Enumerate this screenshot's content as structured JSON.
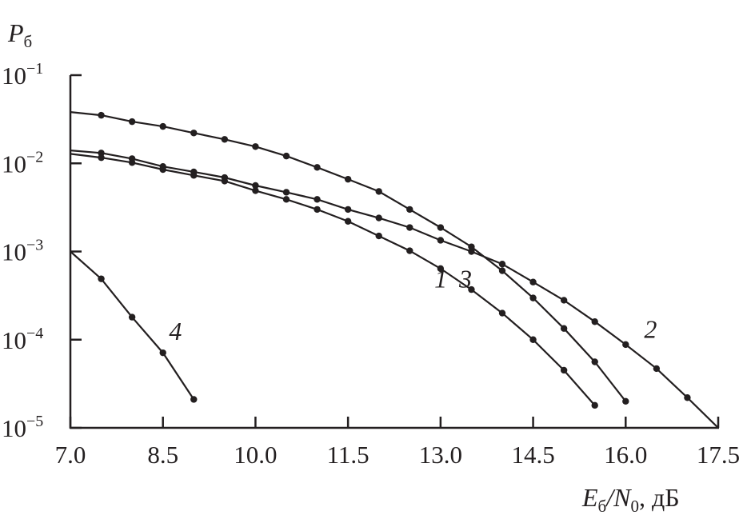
{
  "chart_data": {
    "type": "line",
    "title": "",
    "ylabel": {
      "main": "P",
      "sub": "б"
    },
    "xlabel": {
      "main": "E",
      "sub": "б",
      "slash": "/",
      "main2": "N",
      "sub2": "0",
      "unit": ", дБ"
    },
    "xlim": [
      7.0,
      17.5
    ],
    "ylim": [
      1e-05,
      0.1
    ],
    "yscale": "log",
    "grid": false,
    "x_ticks": [
      "7.0",
      "8.5",
      "10.0",
      "11.5",
      "13.0",
      "14.5",
      "16.0",
      "17.5"
    ],
    "x_tick_values": [
      7.0,
      8.5,
      10.0,
      11.5,
      13.0,
      14.5,
      16.0,
      17.5
    ],
    "y_ticks": [
      {
        "base": "10",
        "exp": "−1",
        "value": 0.1
      },
      {
        "base": "10",
        "exp": "−2",
        "value": 0.01
      },
      {
        "base": "10",
        "exp": "−3",
        "value": 0.001
      },
      {
        "base": "10",
        "exp": "−4",
        "value": 0.0001
      },
      {
        "base": "10",
        "exp": "−5",
        "value": 1e-05
      }
    ],
    "series": [
      {
        "name": "1",
        "label_at": [
          12.9,
          0.00039
        ],
        "x": [
          7.0,
          7.5,
          8.0,
          8.5,
          9.0,
          9.5,
          10.0,
          10.5,
          11.0,
          11.5,
          12.0,
          12.5,
          13.0,
          13.5,
          14.0,
          14.5,
          15.0,
          15.5
        ],
        "y": [
          0.0128,
          0.0116,
          0.0102,
          0.0085,
          0.0073,
          0.0063,
          0.0049,
          0.0039,
          0.003,
          0.0022,
          0.0015,
          0.00102,
          0.00064,
          0.00037,
          0.0002,
          0.0001,
          4.5e-05,
          1.8e-05
        ]
      },
      {
        "name": "2",
        "label_at": [
          16.3,
          0.000105
        ],
        "x": [
          7.0,
          7.5,
          8.0,
          8.5,
          9.0,
          9.5,
          10.0,
          10.5,
          11.0,
          11.5,
          12.0,
          12.5,
          13.0,
          13.5,
          14.0,
          14.5,
          15.0,
          15.5,
          16.0,
          16.5,
          17.0,
          17.5
        ],
        "y": [
          0.014,
          0.0131,
          0.0113,
          0.0092,
          0.008,
          0.0069,
          0.0056,
          0.0047,
          0.0039,
          0.003,
          0.0024,
          0.00187,
          0.00134,
          0.001,
          0.00072,
          0.00045,
          0.00028,
          0.00016,
          8.8e-05,
          4.7e-05,
          2.2e-05,
          1e-05
        ]
      },
      {
        "name": "3",
        "label_at": [
          13.3,
          0.00039
        ],
        "x": [
          7.0,
          7.5,
          8.0,
          8.5,
          9.0,
          9.5,
          10.0,
          10.5,
          11.0,
          11.5,
          12.0,
          12.5,
          13.0,
          13.5,
          14.0,
          14.5,
          15.0,
          15.5,
          16.0
        ],
        "y": [
          0.0382,
          0.0351,
          0.0297,
          0.0262,
          0.0221,
          0.0187,
          0.0155,
          0.0121,
          0.009,
          0.0066,
          0.0048,
          0.003,
          0.00187,
          0.00113,
          0.000605,
          0.000297,
          0.000134,
          5.6e-05,
          2e-05
        ]
      },
      {
        "name": "4",
        "label_at": [
          8.6,
          0.0001
        ],
        "x": [
          7.0,
          7.5,
          8.0,
          8.5,
          9.0
        ],
        "y": [
          0.001,
          0.00049,
          0.00018,
          7.1e-05,
          2.1e-05
        ]
      }
    ]
  }
}
